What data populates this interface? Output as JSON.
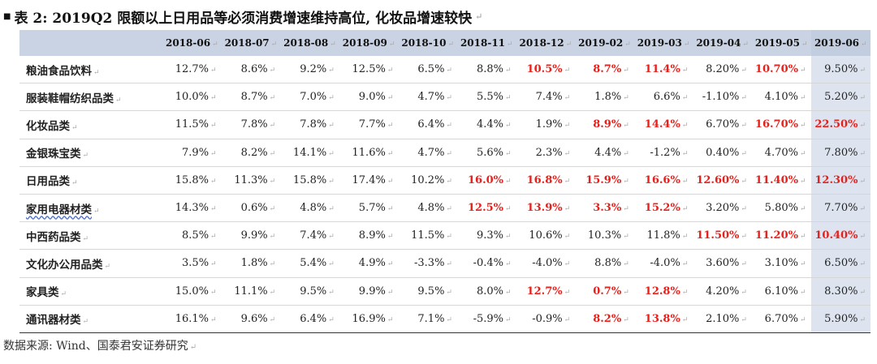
{
  "title": "表 2: 2019Q2 限额以上日用品等必须消费增速维持高位, 化妆品增速较快",
  "paragraph_mark": "↵",
  "columns": [
    "2018-06",
    "2018-07",
    "2018-08",
    "2018-09",
    "2018-10",
    "2018-11",
    "2018-12",
    "2019-02",
    "2019-03",
    "2019-04",
    "2019-05",
    "2019-06"
  ],
  "rows": [
    {
      "label": "粮油食品饮料",
      "values": [
        {
          "v": "12.7%",
          "red": false
        },
        {
          "v": "8.6%",
          "red": false
        },
        {
          "v": "9.2%",
          "red": false
        },
        {
          "v": "12.5%",
          "red": false
        },
        {
          "v": "6.5%",
          "red": false
        },
        {
          "v": "8.8%",
          "red": false
        },
        {
          "v": "10.5%",
          "red": true
        },
        {
          "v": "8.7%",
          "red": true
        },
        {
          "v": "11.4%",
          "red": true
        },
        {
          "v": "8.20%",
          "red": false
        },
        {
          "v": "10.70%",
          "red": true
        },
        {
          "v": "9.50%",
          "red": false
        }
      ]
    },
    {
      "label": "服装鞋帽纺织品类",
      "values": [
        {
          "v": "10.0%",
          "red": false
        },
        {
          "v": "8.7%",
          "red": false
        },
        {
          "v": "7.0%",
          "red": false
        },
        {
          "v": "9.0%",
          "red": false
        },
        {
          "v": "4.7%",
          "red": false
        },
        {
          "v": "5.5%",
          "red": false
        },
        {
          "v": "7.4%",
          "red": false
        },
        {
          "v": "1.8%",
          "red": false
        },
        {
          "v": "6.6%",
          "red": false
        },
        {
          "v": "-1.10%",
          "red": false
        },
        {
          "v": "4.10%",
          "red": false
        },
        {
          "v": "5.20%",
          "red": false
        }
      ]
    },
    {
      "label": "化妆品类",
      "values": [
        {
          "v": "11.5%",
          "red": false
        },
        {
          "v": "7.8%",
          "red": false
        },
        {
          "v": "7.8%",
          "red": false
        },
        {
          "v": "7.7%",
          "red": false
        },
        {
          "v": "6.4%",
          "red": false
        },
        {
          "v": "4.4%",
          "red": false
        },
        {
          "v": "1.9%",
          "red": false
        },
        {
          "v": "8.9%",
          "red": true
        },
        {
          "v": "14.4%",
          "red": true
        },
        {
          "v": "6.70%",
          "red": false
        },
        {
          "v": "16.70%",
          "red": true
        },
        {
          "v": "22.50%",
          "red": true
        }
      ]
    },
    {
      "label": "金银珠宝类",
      "values": [
        {
          "v": "7.9%",
          "red": false
        },
        {
          "v": "8.2%",
          "red": false
        },
        {
          "v": "14.1%",
          "red": false
        },
        {
          "v": "11.6%",
          "red": false
        },
        {
          "v": "4.7%",
          "red": false
        },
        {
          "v": "5.6%",
          "red": false
        },
        {
          "v": "2.3%",
          "red": false
        },
        {
          "v": "4.4%",
          "red": false
        },
        {
          "v": "-1.2%",
          "red": false
        },
        {
          "v": "0.40%",
          "red": false
        },
        {
          "v": "4.70%",
          "red": false
        },
        {
          "v": "7.80%",
          "red": false
        }
      ]
    },
    {
      "label": "日用品类",
      "values": [
        {
          "v": "15.8%",
          "red": false
        },
        {
          "v": "11.3%",
          "red": false
        },
        {
          "v": "15.8%",
          "red": false
        },
        {
          "v": "17.4%",
          "red": false
        },
        {
          "v": "10.2%",
          "red": false
        },
        {
          "v": "16.0%",
          "red": true
        },
        {
          "v": "16.8%",
          "red": true
        },
        {
          "v": "15.9%",
          "red": true
        },
        {
          "v": "16.6%",
          "red": true
        },
        {
          "v": "12.60%",
          "red": true
        },
        {
          "v": "11.40%",
          "red": true
        },
        {
          "v": "12.30%",
          "red": true
        }
      ]
    },
    {
      "label": "家用电器材类",
      "values": [
        {
          "v": "14.3%",
          "red": false
        },
        {
          "v": "0.6%",
          "red": false
        },
        {
          "v": "4.8%",
          "red": false
        },
        {
          "v": "5.7%",
          "red": false
        },
        {
          "v": "4.8%",
          "red": false
        },
        {
          "v": "12.5%",
          "red": true
        },
        {
          "v": "13.9%",
          "red": true
        },
        {
          "v": "3.3%",
          "red": true
        },
        {
          "v": "15.2%",
          "red": true
        },
        {
          "v": "3.20%",
          "red": false
        },
        {
          "v": "5.80%",
          "red": false
        },
        {
          "v": "7.70%",
          "red": false
        }
      ]
    },
    {
      "label": "中西药品类",
      "values": [
        {
          "v": "8.5%",
          "red": false
        },
        {
          "v": "9.9%",
          "red": false
        },
        {
          "v": "7.4%",
          "red": false
        },
        {
          "v": "8.9%",
          "red": false
        },
        {
          "v": "11.5%",
          "red": false
        },
        {
          "v": "9.3%",
          "red": false
        },
        {
          "v": "10.6%",
          "red": false
        },
        {
          "v": "10.3%",
          "red": false
        },
        {
          "v": "11.8%",
          "red": false
        },
        {
          "v": "11.50%",
          "red": true
        },
        {
          "v": "11.20%",
          "red": true
        },
        {
          "v": "10.40%",
          "red": true
        }
      ]
    },
    {
      "label": "文化办公用品类",
      "values": [
        {
          "v": "3.5%",
          "red": false
        },
        {
          "v": "1.8%",
          "red": false
        },
        {
          "v": "5.4%",
          "red": false
        },
        {
          "v": "4.9%",
          "red": false
        },
        {
          "v": "-3.3%",
          "red": false
        },
        {
          "v": "-0.4%",
          "red": false
        },
        {
          "v": "-4.0%",
          "red": false
        },
        {
          "v": "8.8%",
          "red": false
        },
        {
          "v": "-4.0%",
          "red": false
        },
        {
          "v": "3.60%",
          "red": false
        },
        {
          "v": "3.10%",
          "red": false
        },
        {
          "v": "6.50%",
          "red": false
        }
      ]
    },
    {
      "label": "家具类",
      "values": [
        {
          "v": "15.0%",
          "red": false
        },
        {
          "v": "11.1%",
          "red": false
        },
        {
          "v": "9.5%",
          "red": false
        },
        {
          "v": "9.9%",
          "red": false
        },
        {
          "v": "9.5%",
          "red": false
        },
        {
          "v": "8.0%",
          "red": false
        },
        {
          "v": "12.7%",
          "red": true
        },
        {
          "v": "0.7%",
          "red": true
        },
        {
          "v": "12.8%",
          "red": true
        },
        {
          "v": "4.20%",
          "red": false
        },
        {
          "v": "6.10%",
          "red": false
        },
        {
          "v": "8.30%",
          "red": false
        }
      ]
    },
    {
      "label": "通讯器材类",
      "values": [
        {
          "v": "16.1%",
          "red": false
        },
        {
          "v": "9.6%",
          "red": false
        },
        {
          "v": "6.4%",
          "red": false
        },
        {
          "v": "16.9%",
          "red": false
        },
        {
          "v": "7.1%",
          "red": false
        },
        {
          "v": "-5.9%",
          "red": false
        },
        {
          "v": "-0.9%",
          "red": false
        },
        {
          "v": "8.2%",
          "red": true
        },
        {
          "v": "13.8%",
          "red": true
        },
        {
          "v": "2.10%",
          "red": false
        },
        {
          "v": "6.70%",
          "red": false
        },
        {
          "v": "5.90%",
          "red": false
        }
      ]
    }
  ],
  "source": "数据来源: Wind、国泰君安证券研究",
  "colors": {
    "highlight": "#e8201c",
    "header_bg": "#c9d3e4",
    "last_col_bg": "#dde4ef"
  }
}
